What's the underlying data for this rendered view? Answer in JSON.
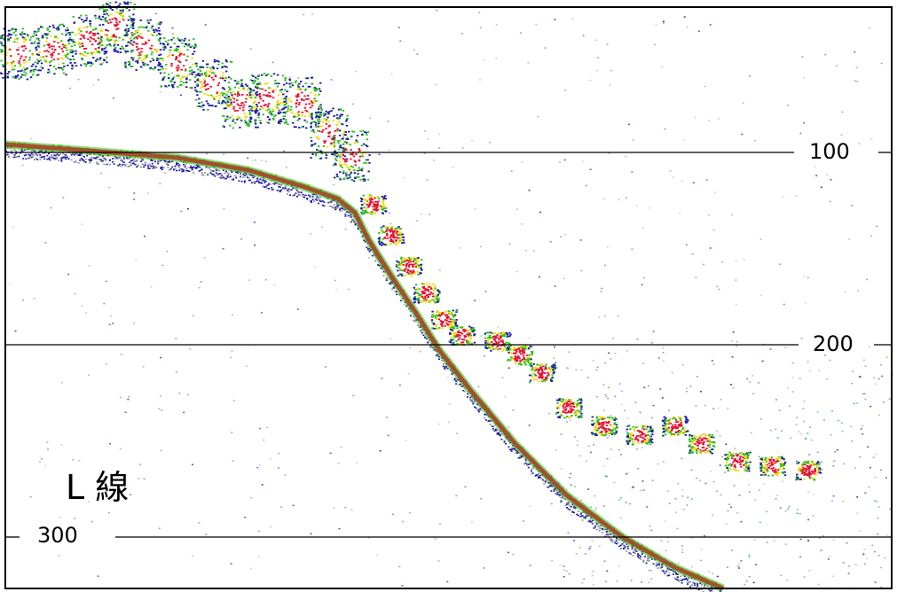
{
  "chart_data": {
    "type": "echogram",
    "title": "L 線",
    "depth_ticks": [
      100,
      200,
      300
    ],
    "depth_range": [
      0,
      305
    ],
    "colors": {
      "bottom": "#a0522d",
      "strong": "#e8112d",
      "mid": "#ffd400",
      "weak": "#2fbf1f",
      "faint": "#1a1aa6",
      "noise": "#8a8aa0"
    }
  }
}
